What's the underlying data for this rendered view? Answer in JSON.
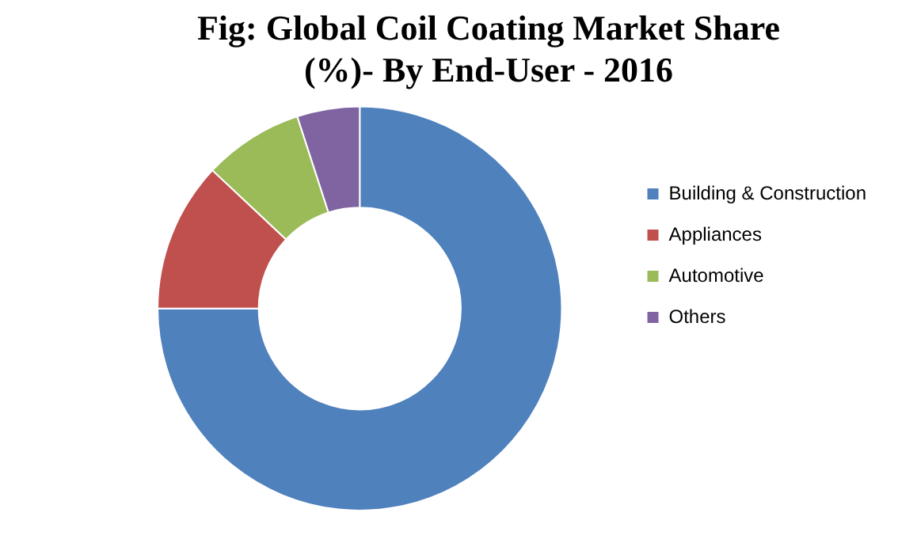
{
  "chart_data": {
    "type": "donut",
    "title": "Fig: Global Coil Coating Market Share (%)- By End-User - 2016",
    "categories": [
      "Building & Construction",
      "Appliances",
      "Automotive",
      "Others"
    ],
    "values": [
      75,
      12,
      8,
      5
    ],
    "colors": [
      "#4f81bd",
      "#c0504d",
      "#9bbb59",
      "#8064a2"
    ],
    "legend": "right"
  }
}
